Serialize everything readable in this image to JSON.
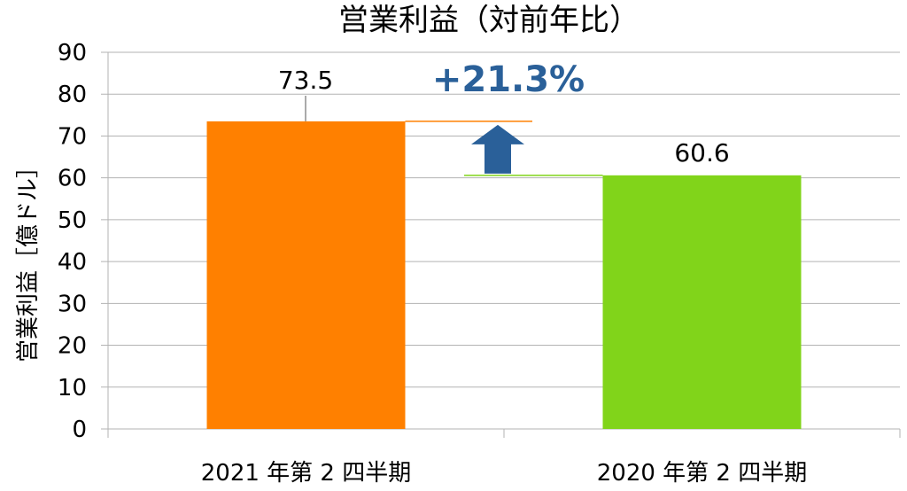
{
  "chart_data": {
    "type": "bar",
    "title": "営業利益（対前年比）",
    "ylabel": "営業利益［億ドル］",
    "xlabel": "",
    "categories": [
      "2021 年第 2 四半期",
      "2020 年第 2 四半期"
    ],
    "values": [
      73.5,
      60.6
    ],
    "data_labels": [
      "73.5",
      "60.6"
    ],
    "bar_colors": [
      "#ff8000",
      "#81d41a"
    ],
    "ylim": [
      0,
      90
    ],
    "yticks": [
      "0",
      "10",
      "20",
      "30",
      "40",
      "50",
      "60",
      "70",
      "80",
      "90"
    ],
    "grid": true,
    "legend": "none",
    "annotation": {
      "text": "+21.3%",
      "color": "#2a6099",
      "arrow": "up"
    }
  }
}
